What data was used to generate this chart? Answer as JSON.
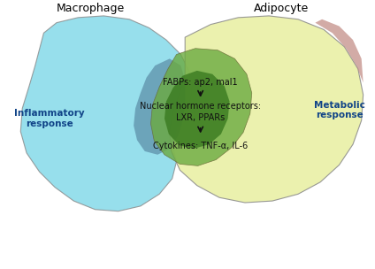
{
  "macrophage_label": "Macrophage",
  "adipocyte_label": "Adipocyte",
  "inflammatory_label": "Inflammatory\nresponse",
  "metabolic_label": "Metabolic\nresponse",
  "fabps_label": "FABPs: ap2, mal1",
  "nuclear_label": "Nuclear hormone receptors:\nLXR, PPARs",
  "cytokines_label": "Cytokines: TNF-α, IL-6",
  "macrophage_color": "#7DD8E8",
  "macrophage_alpha": 0.8,
  "adipocyte_color": "#E8EFA0",
  "adipocyte_alpha": 0.85,
  "overlap_green_color": "#6BAA40",
  "overlap_green_alpha": 0.8,
  "dark_green_color": "#3A7A20",
  "dark_green_alpha": 0.8,
  "blue_grey_color": "#5585A0",
  "blue_grey_alpha": 0.65,
  "pink_color": "#C08880",
  "pink_alpha": 0.7,
  "background_color": "#FFFFFF",
  "arrow_color": "#111111",
  "label_color": "#000000",
  "inner_text_color": "#111111",
  "side_label_color": "#114488"
}
